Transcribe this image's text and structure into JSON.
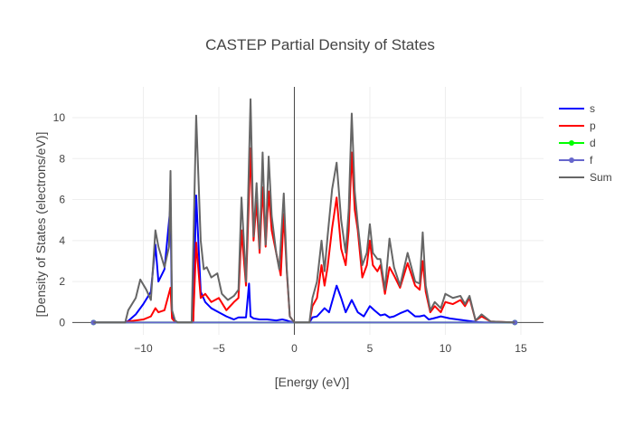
{
  "chart_data": {
    "type": "line",
    "title": "CASTEP Partial  Density of States",
    "xlabel": "[Energy (eV)]",
    "ylabel": "[Density of States (electrons/eV)]",
    "xlim": [
      -14.7,
      16.5
    ],
    "ylim": [
      -0.6,
      11.5
    ],
    "xticks": [
      -10,
      -5,
      0,
      5,
      10,
      15
    ],
    "yticks": [
      0,
      2,
      4,
      6,
      8,
      10
    ],
    "grid": true,
    "legend_position": "top-right",
    "fermi_line_x": 0,
    "series": [
      {
        "name": "s",
        "color": "#0000ff",
        "marker": false,
        "x": [
          -13.3,
          -11.2,
          -11,
          -10.5,
          -10,
          -9.5,
          -9.2,
          -9,
          -8.6,
          -8.2,
          -8.1,
          -7.9,
          -7.7,
          -6.7,
          -6.5,
          -6.2,
          -5.9,
          -5.5,
          -5,
          -4.5,
          -4,
          -3.7,
          -3.2,
          -3.0,
          -2.9,
          -2.7,
          -2.3,
          -1.8,
          -1.2,
          -0.8,
          -0.5,
          -0.3,
          0,
          0.5,
          1,
          1.2,
          1.5,
          2,
          2.3,
          2.8,
          3.1,
          3.4,
          3.8,
          4.2,
          4.6,
          5,
          5.3,
          5.7,
          6,
          6.3,
          6.6,
          7,
          7.5,
          8,
          8.3,
          8.6,
          8.9,
          9.2,
          9.7,
          10.3,
          10.8,
          11.3,
          11.8,
          12.2,
          12.6,
          13.2,
          14.6
        ],
        "y": [
          0,
          0,
          0.08,
          0.4,
          0.9,
          1.5,
          3.8,
          2,
          2.6,
          5.7,
          0.3,
          0.05,
          0,
          0,
          6.2,
          1.5,
          1,
          0.7,
          0.5,
          0.3,
          0.15,
          0.25,
          0.25,
          1.9,
          0.3,
          0.2,
          0.15,
          0.15,
          0.1,
          0.15,
          0.1,
          0.05,
          0,
          0,
          0,
          0.25,
          0.3,
          0.7,
          0.5,
          1.8,
          1.2,
          0.5,
          1.1,
          0.5,
          0.3,
          0.8,
          0.6,
          0.35,
          0.4,
          0.25,
          0.3,
          0.45,
          0.6,
          0.3,
          0.3,
          0.35,
          0.15,
          0.2,
          0.3,
          0.2,
          0.15,
          0.1,
          0.05,
          0.02,
          0,
          0,
          0
        ]
      },
      {
        "name": "p",
        "color": "#ff0000",
        "marker": false,
        "x": [
          -13.3,
          -11.2,
          -11,
          -10.5,
          -10,
          -9.5,
          -9.2,
          -9,
          -8.6,
          -8.2,
          -8.1,
          -7.9,
          -7.7,
          -6.7,
          -6.5,
          -6.2,
          -5.9,
          -5.5,
          -5,
          -4.5,
          -4,
          -3.7,
          -3.5,
          -3.2,
          -2.9,
          -2.7,
          -2.5,
          -2.3,
          -2.1,
          -1.9,
          -1.7,
          -1.5,
          -1.2,
          -0.9,
          -0.7,
          -0.5,
          -0.3,
          0,
          0.5,
          1,
          1.2,
          1.5,
          1.8,
          2,
          2.2,
          2.5,
          2.8,
          3.1,
          3.4,
          3.6,
          3.8,
          4.0,
          4.2,
          4.5,
          4.8,
          5,
          5.2,
          5.5,
          5.7,
          6,
          6.3,
          6.6,
          7,
          7.5,
          8,
          8.3,
          8.5,
          8.7,
          9.0,
          9.3,
          9.7,
          10,
          10.5,
          11,
          11.3,
          11.6,
          12,
          12.4,
          13,
          14.6
        ],
        "y": [
          0,
          0,
          0.05,
          0.1,
          0.15,
          0.3,
          0.7,
          0.5,
          0.6,
          1.7,
          0.2,
          0.03,
          0,
          0,
          3.9,
          1.2,
          1.4,
          1,
          1.2,
          0.6,
          1,
          1.2,
          4.5,
          1.8,
          8.5,
          4,
          5.9,
          3.4,
          6.6,
          3.7,
          6.4,
          4.5,
          3.4,
          2.3,
          5.3,
          2.5,
          0.3,
          0,
          0,
          0,
          0.8,
          1.2,
          2.8,
          1.8,
          2.7,
          4.6,
          6.1,
          3.6,
          2.8,
          4.5,
          8.3,
          5.5,
          4.5,
          2.2,
          2.8,
          4.0,
          2.8,
          2.5,
          2.8,
          1.4,
          2.7,
          2.3,
          1.7,
          2.9,
          1.8,
          1.6,
          3.0,
          1.5,
          0.5,
          0.8,
          0.5,
          1.0,
          0.9,
          1.1,
          0.8,
          1.2,
          0.1,
          0.3,
          0.05,
          0
        ]
      },
      {
        "name": "d",
        "color": "#00ff00",
        "marker": true,
        "x": [
          -13.3,
          14.6
        ],
        "y": [
          0,
          0
        ]
      },
      {
        "name": "f",
        "color": "#6666cc",
        "marker": true,
        "x": [
          -13.3,
          14.6
        ],
        "y": [
          0,
          0
        ]
      },
      {
        "name": "Sum",
        "color": "#666666",
        "marker": false,
        "x": [
          -13.3,
          -11.2,
          -11,
          -10.5,
          -10.2,
          -9.8,
          -9.5,
          -9.2,
          -9,
          -8.6,
          -8.3,
          -8.2,
          -8.1,
          -7.9,
          -7.7,
          -6.8,
          -6.5,
          -6.2,
          -6,
          -5.8,
          -5.5,
          -5.1,
          -4.8,
          -4.4,
          -4,
          -3.7,
          -3.5,
          -3.2,
          -2.9,
          -2.7,
          -2.5,
          -2.3,
          -2.1,
          -1.9,
          -1.7,
          -1.5,
          -1.2,
          -1.0,
          -0.7,
          -0.5,
          -0.3,
          0,
          0.5,
          1,
          1.2,
          1.5,
          1.8,
          2,
          2.2,
          2.5,
          2.8,
          3.1,
          3.4,
          3.6,
          3.8,
          4.0,
          4.2,
          4.5,
          4.8,
          5,
          5.2,
          5.5,
          5.7,
          6,
          6.3,
          6.6,
          7,
          7.5,
          8,
          8.3,
          8.5,
          8.7,
          9,
          9.3,
          9.7,
          10,
          10.5,
          11,
          11.3,
          11.6,
          12,
          12.4,
          13,
          14.6
        ],
        "y": [
          0,
          0,
          0.6,
          1.2,
          2.1,
          1.6,
          1.1,
          4.5,
          3.7,
          2.7,
          3.7,
          7.4,
          0.6,
          0.1,
          0,
          0,
          10.1,
          4,
          2.6,
          2.7,
          2.2,
          2.4,
          1.4,
          1.1,
          1.3,
          1.6,
          6.1,
          2.0,
          10.9,
          4.2,
          6.8,
          3.6,
          8.3,
          3.8,
          8.1,
          5.2,
          3.4,
          2.6,
          6.3,
          2.6,
          0.3,
          0,
          0,
          0,
          1.2,
          2.0,
          4.0,
          2.5,
          4.2,
          6.5,
          7.8,
          5.0,
          3.4,
          5.5,
          10.2,
          6.4,
          4.8,
          2.8,
          3.4,
          4.8,
          3.4,
          3.1,
          3.1,
          1.6,
          4.1,
          2.7,
          1.8,
          3.4,
          2.0,
          1.9,
          4.4,
          1.8,
          0.6,
          1.0,
          0.7,
          1.4,
          1.2,
          1.3,
          0.9,
          1.3,
          0.1,
          0.4,
          0.05,
          0
        ]
      }
    ]
  }
}
